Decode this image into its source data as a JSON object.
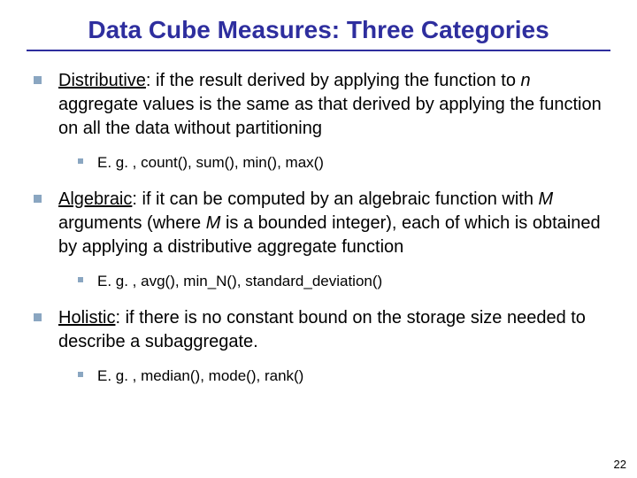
{
  "slide": {
    "title": "Data Cube Measures: Three Categories",
    "title_color": "#2e2e9e",
    "rule_color": "#2e2e9e",
    "background_color": "#ffffff",
    "bullet_color": "#8aa6c1",
    "slide_number": "22",
    "body_fontsize": 20,
    "sub_fontsize": 17,
    "title_fontsize": 28
  },
  "items": {
    "a": {
      "term": "Distributive",
      "intro": ": if the result derived by applying the function to ",
      "var": "n",
      "rest": " aggregate values is the same as that derived by applying the function on all the data without partitioning",
      "example": "E. g. , count(), sum(), min(), max()"
    },
    "b": {
      "term": "Algebraic",
      "intro": ": if it can be computed by an algebraic function with ",
      "var1": "M",
      "mid": " arguments (where ",
      "var2": "M",
      "rest": " is a bounded integer), each of which is obtained by applying a distributive aggregate function",
      "example": "E. g. ,  avg(), min_N(), standard_deviation()"
    },
    "c": {
      "term": "Holistic",
      "rest": ": if there is no constant bound on the storage size needed to describe a subaggregate.",
      "example": "E. g. , median(), mode(), rank()"
    }
  }
}
